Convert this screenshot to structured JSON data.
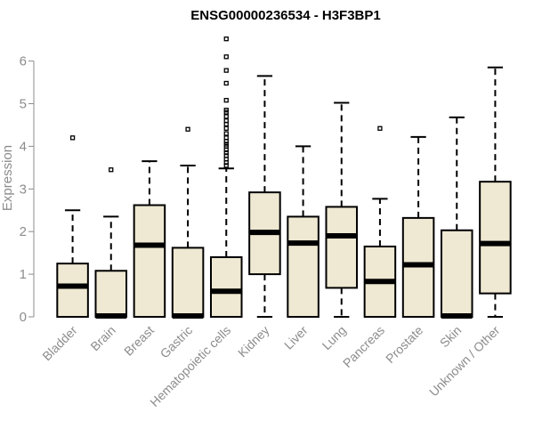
{
  "chart_data": {
    "type": "boxplot",
    "title": "ENSG00000236534 - H3F3BP1",
    "ylabel": "Expression",
    "ylim": [
      0,
      6.7
    ],
    "yticks": [
      "0",
      "1",
      "2",
      "3",
      "4",
      "5",
      "6"
    ],
    "box_fill": "#efe8d2",
    "categories": [
      "Bladder",
      "Brain",
      "Breast",
      "Gastric",
      "Hematopoietic cells",
      "Kidney",
      "Liver",
      "Lung",
      "Pancreas",
      "Prostate",
      "Skin",
      "Unknown / Other"
    ],
    "boxes": [
      {
        "whisker_low": 0,
        "q1": 0,
        "median": 0.72,
        "q3": 1.25,
        "whisker_high": 2.5,
        "outliers": [
          4.2
        ]
      },
      {
        "whisker_low": 0,
        "q1": 0,
        "median": 0.02,
        "q3": 1.08,
        "whisker_high": 2.35,
        "outliers": [
          3.45
        ]
      },
      {
        "whisker_low": 0,
        "q1": 0,
        "median": 1.68,
        "q3": 2.62,
        "whisker_high": 3.65,
        "outliers": []
      },
      {
        "whisker_low": 0,
        "q1": 0,
        "median": 0.02,
        "q3": 1.62,
        "whisker_high": 3.55,
        "outliers": [
          4.4
        ]
      },
      {
        "whisker_low": 0,
        "q1": 0,
        "median": 0.6,
        "q3": 1.4,
        "whisker_high": 3.48,
        "outliers": [
          3.55,
          3.62,
          3.7,
          3.78,
          3.85,
          3.92,
          4.0,
          4.05,
          4.12,
          4.2,
          4.3,
          4.42,
          4.52,
          4.6,
          4.7,
          4.8,
          4.85,
          5.08,
          5.48,
          5.78,
          6.1,
          6.52
        ]
      },
      {
        "whisker_low": 0,
        "q1": 1.0,
        "median": 1.98,
        "q3": 2.92,
        "whisker_high": 5.65,
        "outliers": []
      },
      {
        "whisker_low": 0,
        "q1": 0,
        "median": 1.73,
        "q3": 2.35,
        "whisker_high": 4.0,
        "outliers": []
      },
      {
        "whisker_low": 0,
        "q1": 0.68,
        "median": 1.9,
        "q3": 2.58,
        "whisker_high": 5.02,
        "outliers": []
      },
      {
        "whisker_low": 0,
        "q1": 0,
        "median": 0.83,
        "q3": 1.65,
        "whisker_high": 2.77,
        "outliers": [
          4.42
        ]
      },
      {
        "whisker_low": 0,
        "q1": 0,
        "median": 1.22,
        "q3": 2.32,
        "whisker_high": 4.22,
        "outliers": []
      },
      {
        "whisker_low": 0,
        "q1": 0,
        "median": 0.02,
        "q3": 2.03,
        "whisker_high": 4.68,
        "outliers": []
      },
      {
        "whisker_low": 0,
        "q1": 0.55,
        "median": 1.72,
        "q3": 3.17,
        "whisker_high": 5.85,
        "outliers": []
      }
    ]
  }
}
